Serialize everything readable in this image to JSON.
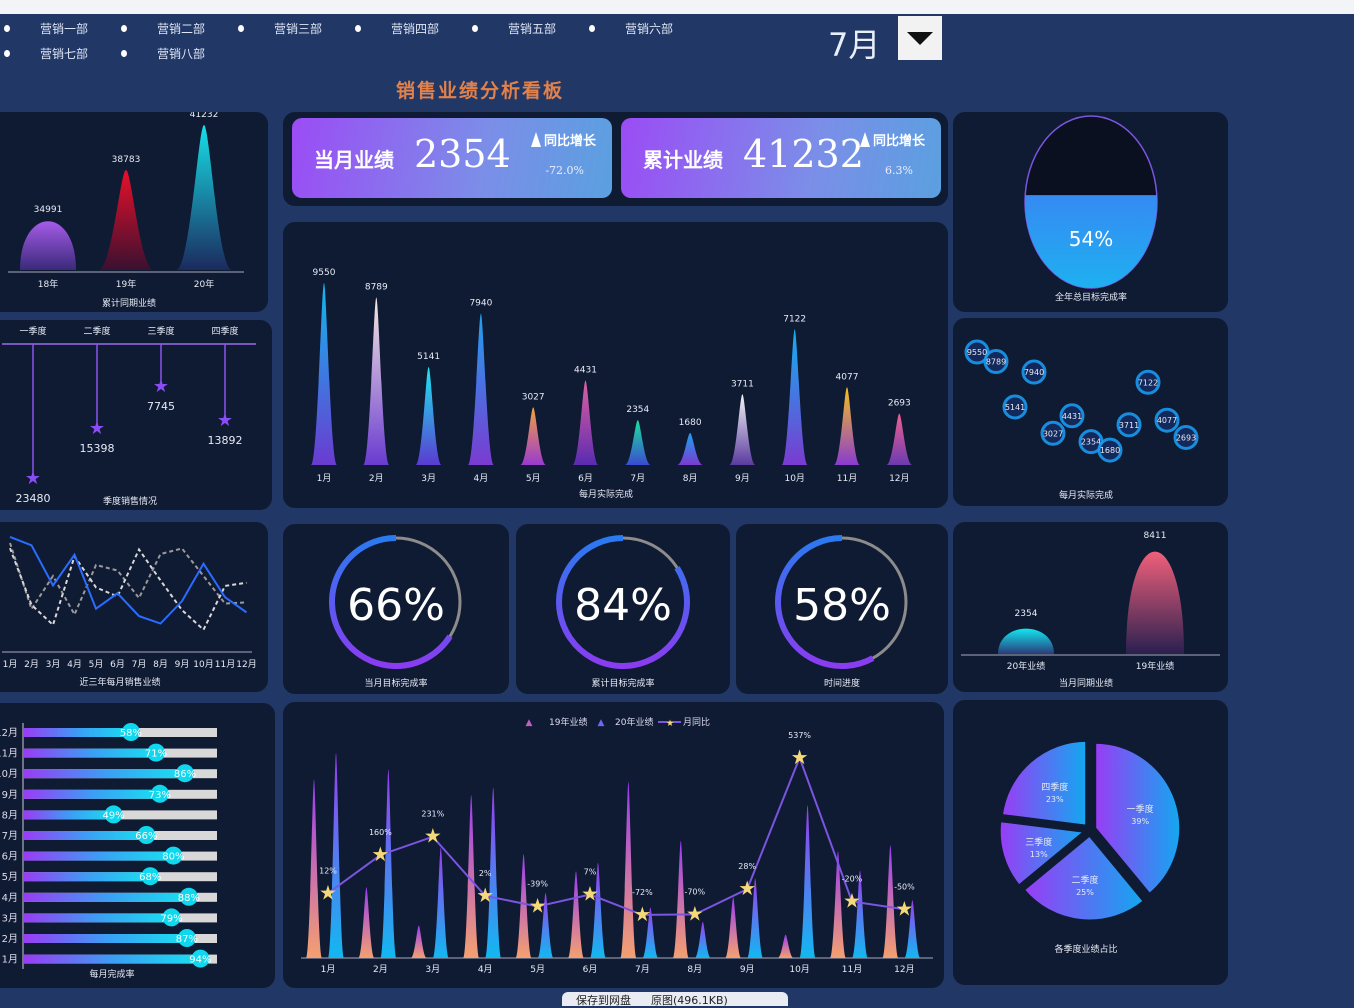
{
  "slicers": [
    "营销一部",
    "营销二部",
    "营销三部",
    "营销四部",
    "营销五部",
    "营销六部",
    "营销七部",
    "营销八部"
  ],
  "selected_month": "7月",
  "dashboard_title": "销售业绩分析看板",
  "kpi": [
    {
      "label": "当月业绩",
      "value": "2354",
      "yoy_label": "同比增长",
      "yoy": "-72.0%"
    },
    {
      "label": "累计业绩",
      "value": "41232",
      "yoy_label": "同比增长",
      "yoy": "6.3%"
    }
  ],
  "colors": {
    "bg": "#213766",
    "panel": "#0f1a33",
    "accent": "#9b4cf5",
    "cyan": "#1ee3f0",
    "title": "#e2814a"
  },
  "chart_data": [
    {
      "id": "cumulative",
      "type": "bar",
      "title": "累计同期业绩",
      "categories": [
        "18年",
        "19年",
        "20年"
      ],
      "values": [
        34991,
        38783,
        41232
      ]
    },
    {
      "id": "quarterly",
      "type": "bar",
      "title": "季度销售情况",
      "categories": [
        "一季度",
        "二季度",
        "三季度",
        "四季度"
      ],
      "values": [
        23480,
        15398,
        7745,
        13892
      ]
    },
    {
      "id": "three_year",
      "type": "line",
      "title": "近三年每月销售业绩",
      "categories": [
        "1月",
        "2月",
        "3月",
        "4月",
        "5月",
        "6月",
        "7月",
        "8月",
        "9月",
        "10月",
        "11月",
        "12月"
      ],
      "series": [
        {
          "name": "18年",
          "values": [
            9000,
            3000,
            6000,
            2500,
            7000,
            6500,
            4000,
            8000,
            8500,
            6000,
            3500,
            3600
          ]
        },
        {
          "name": "19年",
          "values": [
            8527,
            3380,
            1553,
            7784,
            4962,
            4141,
            8411,
            5600,
            2899,
            1118,
            5096,
            5386
          ]
        },
        {
          "name": "20年",
          "values": [
            9550,
            8789,
            5141,
            7940,
            3027,
            4431,
            2354,
            1680,
            3711,
            7122,
            4077,
            2693
          ]
        }
      ]
    },
    {
      "id": "monthly_rate",
      "type": "bar",
      "title": "每月完成率",
      "categories": [
        "12月",
        "11月",
        "10月",
        "9月",
        "8月",
        "7月",
        "6月",
        "5月",
        "4月",
        "3月",
        "2月",
        "1月"
      ],
      "values": [
        58,
        71,
        86,
        73,
        49,
        66,
        80,
        68,
        88,
        79,
        87,
        94
      ],
      "labels": [
        "58%",
        "71%",
        "86%",
        "73%",
        "49%",
        "66%",
        "80%",
        "68%",
        "88%",
        "79%",
        "87%",
        "94%"
      ]
    },
    {
      "id": "monthly_actual",
      "type": "bar",
      "title": "每月实际完成",
      "categories": [
        "1月",
        "2月",
        "3月",
        "4月",
        "5月",
        "6月",
        "7月",
        "8月",
        "9月",
        "10月",
        "11月",
        "12月"
      ],
      "values": [
        9550,
        8789,
        5141,
        7940,
        3027,
        4431,
        2354,
        1680,
        3711,
        7122,
        4077,
        2693
      ]
    },
    {
      "id": "gauges",
      "type": "pie",
      "items": [
        {
          "label": "当月目标完成率",
          "value": 66,
          "text": "66%"
        },
        {
          "label": "累计目标完成率",
          "value": 84,
          "text": "84%"
        },
        {
          "label": "时间进度",
          "value": 58,
          "text": "58%"
        }
      ]
    },
    {
      "id": "combo",
      "type": "bar",
      "legend": [
        "19年业绩",
        "20年业绩",
        "月同比"
      ],
      "categories": [
        "1月",
        "2月",
        "3月",
        "4月",
        "5月",
        "6月",
        "7月",
        "8月",
        "9月",
        "10月",
        "11月",
        "12月"
      ],
      "series": [
        {
          "name": "19年业绩",
          "values": [
            8527,
            3380,
            1553,
            7784,
            4962,
            4141,
            8411,
            5600,
            2899,
            1118,
            5096,
            5386
          ]
        },
        {
          "name": "20年业绩",
          "values": [
            9550,
            8789,
            5141,
            7940,
            3027,
            4431,
            2354,
            1680,
            3711,
            7122,
            4077,
            2693
          ]
        }
      ],
      "yoy": [
        12,
        160,
        231,
        2,
        -39,
        7,
        -72,
        -70,
        28,
        537,
        -20,
        -50
      ],
      "yoy_labels": [
        "12%",
        "160%",
        "231%",
        "2%",
        "-39%",
        "7%",
        "-72%",
        "-70%",
        "28%",
        "537%",
        "-20%",
        "-50%"
      ]
    },
    {
      "id": "annual",
      "type": "pie",
      "title": "全年总目标完成率",
      "value": 54,
      "text": "54%"
    },
    {
      "id": "bubble",
      "type": "scatter",
      "title": "每月实际完成",
      "x": [
        1,
        2,
        3,
        4,
        5,
        6,
        7,
        8,
        9,
        10,
        11,
        12
      ],
      "values": [
        9550,
        8789,
        5141,
        7940,
        3027,
        4431,
        2354,
        1680,
        3711,
        7122,
        4077,
        2693
      ]
    },
    {
      "id": "same_period",
      "type": "bar",
      "title": "当月同期业绩",
      "categories": [
        "20年业绩",
        "19年业绩"
      ],
      "values": [
        2354,
        8411
      ]
    },
    {
      "id": "quarter_share",
      "type": "pie",
      "title": "各季度业绩占比",
      "categories": [
        "一季度",
        "二季度",
        "三季度",
        "四季度"
      ],
      "values": [
        39,
        25,
        13,
        23
      ],
      "labels": [
        "39%",
        "25%",
        "13%",
        "23%"
      ]
    }
  ],
  "footer": {
    "save": "保存到网盘",
    "original": "原图(496.1KB)"
  }
}
